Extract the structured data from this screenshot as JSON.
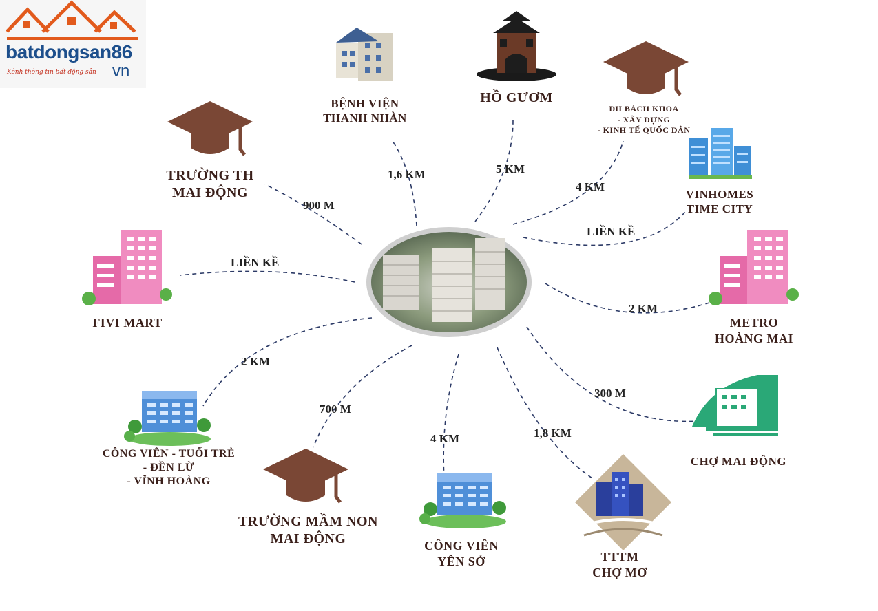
{
  "logo": {
    "brand": "batdongsan86",
    "tagline": "Kênh thông tin bất động sản",
    "suffix": "vn"
  },
  "places": [
    {
      "id": "benh-vien",
      "label": "BỆNH VIỆN\nTHANH NHÀN",
      "distance": "1,6 KM",
      "icon": "hospital-building-icon"
    },
    {
      "id": "ho-guom",
      "label": "HỒ GƯƠM",
      "distance": "5 KM",
      "icon": "turtle-tower-icon"
    },
    {
      "id": "dh",
      "label": "ĐH BÁCH KHOA\n- XÂY DỰNG\n- KINH TẾ QUỐC DÂN",
      "distance": "4 KM",
      "icon": "graduation-cap-icon"
    },
    {
      "id": "vinhomes",
      "label": "VINHOMES\nTIME CITY",
      "distance": "LIỀN KỀ",
      "icon": "towers-icon"
    },
    {
      "id": "truong-th",
      "label": "TRƯỜNG TH\nMAI ĐỘNG",
      "distance": "900 M",
      "icon": "graduation-cap-icon"
    },
    {
      "id": "fivi",
      "label": "FIVI MART",
      "distance": "LIỀN KỀ",
      "icon": "pink-building-icon"
    },
    {
      "id": "metro",
      "label": "METRO\nHOÀNG MAI",
      "distance": "2 KM",
      "icon": "pink-building-icon"
    },
    {
      "id": "cong-vien-tt",
      "label": "CÔNG VIÊN - TUỔI TRẺ\n- ĐỀN LỪ\n- VĨNH HOÀNG",
      "distance": "2 KM",
      "icon": "blue-building-icon"
    },
    {
      "id": "mam-non",
      "label": "TRƯỜNG MẦM NON\nMAI ĐỘNG",
      "distance": "700 M",
      "icon": "graduation-cap-icon"
    },
    {
      "id": "yen-so",
      "label": "CÔNG VIÊN\nYÊN SỞ",
      "distance": "4 KM",
      "icon": "blue-building-icon"
    },
    {
      "id": "cho-mo",
      "label": "TTTM\nCHỢ MƠ",
      "distance": "1,8 KM",
      "icon": "mall-icon"
    },
    {
      "id": "cho-mai",
      "label": "CHỢ MAI ĐỘNG",
      "distance": "300 M",
      "icon": "market-icon"
    }
  ],
  "colors": {
    "cap": "#7a4735",
    "label": "#3a1f1a",
    "line": "#2c3a66",
    "pink": "#ec7fb6",
    "blue": "#4f8fd8"
  }
}
